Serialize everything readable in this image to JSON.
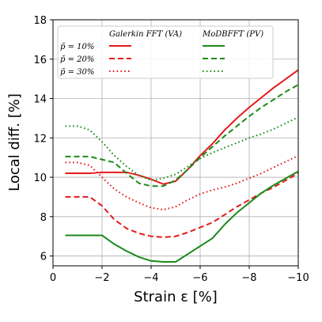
{
  "chart_data": {
    "type": "line",
    "xlabel": "Strain ε [%]",
    "ylabel": "Local diff. [%]",
    "xlim": [
      0,
      -10
    ],
    "ylim": [
      5.5,
      18
    ],
    "x_ticks": [
      "0",
      "−2",
      "−4",
      "−6",
      "−8",
      "−10"
    ],
    "x_tick_values": [
      0,
      -2,
      -4,
      -6,
      -8,
      -10
    ],
    "y_ticks": [
      "6",
      "8",
      "10",
      "12",
      "14",
      "16",
      "18"
    ],
    "y_tick_values": [
      6,
      8,
      10,
      12,
      14,
      16,
      18
    ],
    "grid": true,
    "legend": {
      "placement": "top-left",
      "column_headers": [
        "Galerkin FFT (VA)",
        "MoDBFFT (PV)"
      ],
      "row_labels": [
        "p̄ = 10%",
        "p̄ = 20%",
        "p̄ = 30%"
      ]
    },
    "series": [
      {
        "method": "Galerkin FFT (VA)",
        "row": 0,
        "color": "#e41a1c",
        "dash": "solid",
        "x": [
          -0.5,
          -1,
          -1.5,
          -2,
          -2.5,
          -3,
          -3.5,
          -4,
          -4.5,
          -5,
          -5.5,
          -6,
          -6.5,
          -7,
          -7.5,
          -8,
          -8.5,
          -9,
          -9.5,
          -10
        ],
        "y": [
          10.2,
          10.2,
          10.2,
          10.25,
          10.25,
          10.25,
          10.1,
          9.9,
          9.65,
          9.8,
          10.4,
          11.1,
          11.7,
          12.4,
          13.0,
          13.55,
          14.05,
          14.55,
          15.0,
          15.45
        ]
      },
      {
        "method": "Galerkin FFT (VA)",
        "row": 1,
        "color": "#e41a1c",
        "dash": "dashed",
        "x": [
          -0.5,
          -1,
          -1.5,
          -2,
          -2.5,
          -3,
          -3.5,
          -4,
          -4.5,
          -5,
          -5.5,
          -6,
          -6.5,
          -7,
          -7.5,
          -8,
          -8.5,
          -9,
          -9.5,
          -10
        ],
        "y": [
          9.0,
          9.0,
          9.0,
          8.55,
          7.85,
          7.4,
          7.15,
          7.0,
          6.95,
          7.0,
          7.2,
          7.45,
          7.7,
          8.1,
          8.5,
          8.85,
          9.2,
          9.5,
          9.85,
          10.2
        ]
      },
      {
        "method": "Galerkin FFT (VA)",
        "row": 2,
        "color": "#e41a1c",
        "dash": "dotted",
        "x": [
          -0.5,
          -1,
          -1.5,
          -2,
          -2.5,
          -3,
          -3.5,
          -4,
          -4.5,
          -5,
          -5.5,
          -6,
          -6.5,
          -7,
          -7.5,
          -8,
          -8.5,
          -9,
          -9.5,
          -10
        ],
        "y": [
          10.75,
          10.75,
          10.6,
          10.0,
          9.4,
          9.0,
          8.7,
          8.45,
          8.35,
          8.5,
          8.85,
          9.15,
          9.35,
          9.5,
          9.7,
          9.95,
          10.2,
          10.5,
          10.8,
          11.1
        ]
      },
      {
        "method": "MoDBFFT (PV)",
        "row": 0,
        "color": "#1b8a1b",
        "dash": "solid",
        "x": [
          -0.5,
          -1,
          -1.5,
          -2,
          -2.5,
          -3,
          -3.5,
          -4,
          -4.5,
          -5,
          -5.5,
          -6,
          -6.5,
          -7,
          -7.5,
          -8,
          -8.5,
          -9,
          -9.5,
          -10
        ],
        "y": [
          7.05,
          7.05,
          7.05,
          7.05,
          6.6,
          6.25,
          5.95,
          5.75,
          5.7,
          5.7,
          6.1,
          6.5,
          6.9,
          7.6,
          8.2,
          8.7,
          9.2,
          9.6,
          9.95,
          10.3
        ]
      },
      {
        "method": "MoDBFFT (PV)",
        "row": 1,
        "color": "#1b8a1b",
        "dash": "dashed",
        "x": [
          -0.5,
          -1,
          -1.5,
          -2,
          -2.5,
          -3,
          -3.5,
          -4,
          -4.5,
          -5,
          -5.5,
          -6,
          -6.5,
          -7,
          -7.5,
          -8,
          -8.5,
          -9,
          -9.5,
          -10
        ],
        "y": [
          11.05,
          11.05,
          11.05,
          10.9,
          10.75,
          10.2,
          9.7,
          9.55,
          9.55,
          9.85,
          10.4,
          11.0,
          11.55,
          12.1,
          12.6,
          13.1,
          13.55,
          13.95,
          14.35,
          14.7
        ]
      },
      {
        "method": "MoDBFFT (PV)",
        "row": 2,
        "color": "#1b8a1b",
        "dash": "dotted",
        "x": [
          -0.5,
          -1,
          -1.5,
          -2,
          -2.5,
          -3,
          -3.5,
          -4,
          -4.5,
          -5,
          -5.5,
          -6,
          -6.5,
          -7,
          -7.5,
          -8,
          -8.5,
          -9,
          -9.5,
          -10
        ],
        "y": [
          12.6,
          12.6,
          12.4,
          11.8,
          11.1,
          10.55,
          10.1,
          9.85,
          9.95,
          10.15,
          10.55,
          10.95,
          11.25,
          11.5,
          11.75,
          12.0,
          12.2,
          12.45,
          12.75,
          13.05
        ]
      }
    ]
  }
}
